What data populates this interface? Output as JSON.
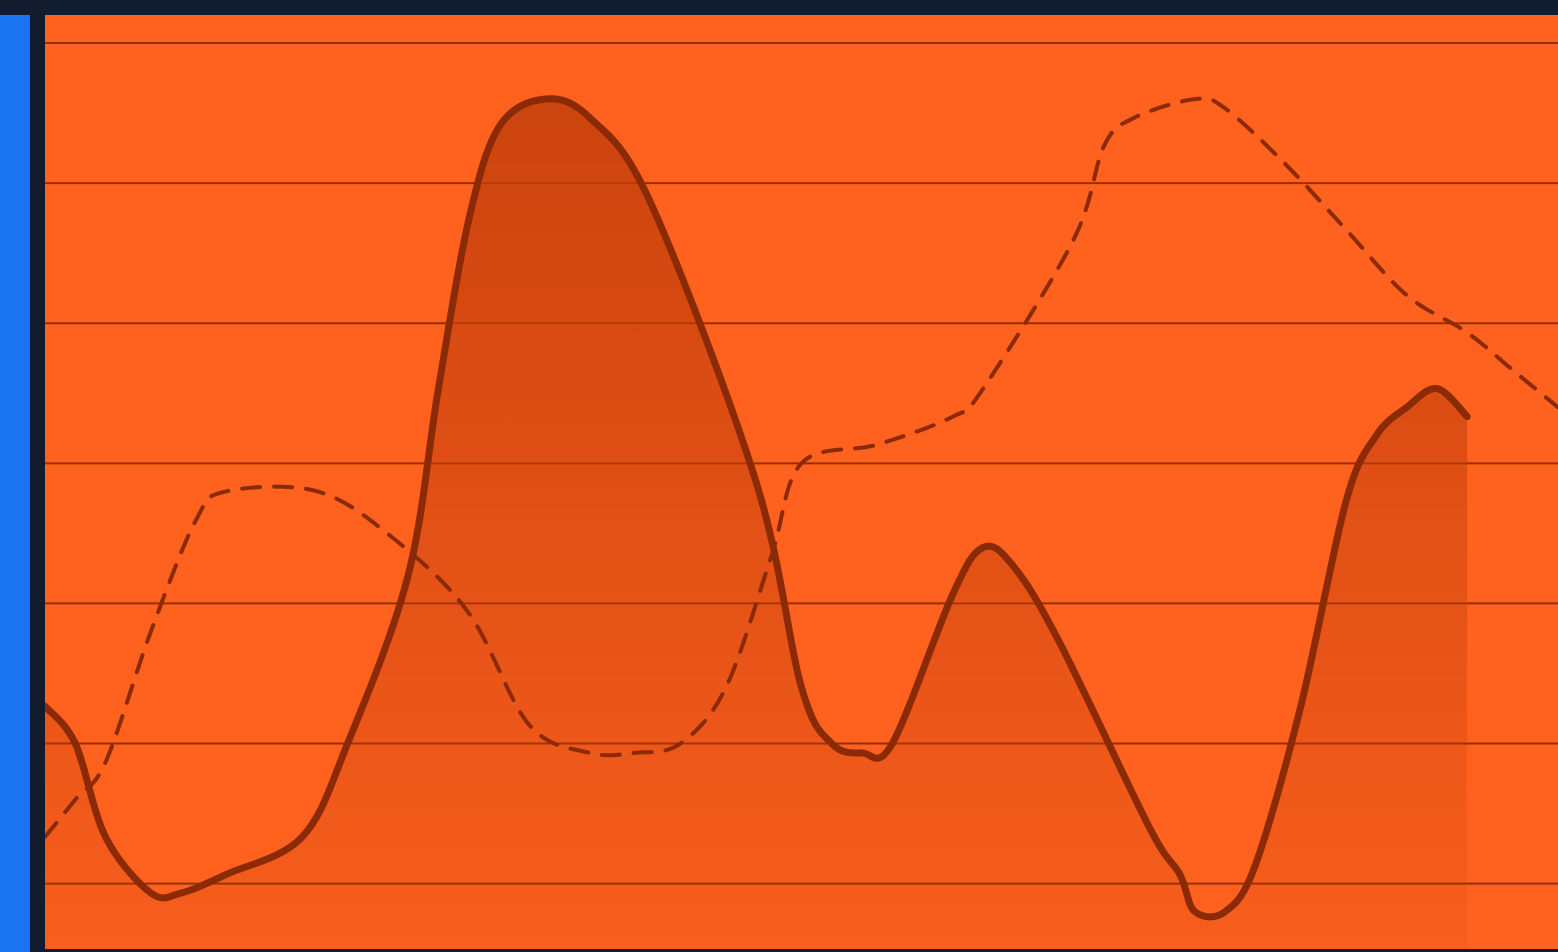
{
  "colors": {
    "frame": "#131c2e",
    "accent": "#1a73f0",
    "plot_background": "#ff621f",
    "line": "#8a2a06",
    "area_fill": "#c23e0b"
  },
  "chart_data": {
    "type": "line",
    "grid": "horizontal",
    "legend": "none",
    "x_range": [
      0,
      100
    ],
    "y_range": [
      0,
      100
    ],
    "gridlines_y": [
      7,
      22,
      37,
      52,
      67,
      82,
      97
    ],
    "series": [
      {
        "style": "solid",
        "filled": true,
        "points": [
          [
            0,
            26
          ],
          [
            2,
            22
          ],
          [
            4,
            12
          ],
          [
            7,
            6
          ],
          [
            9,
            6
          ],
          [
            12,
            8
          ],
          [
            17,
            12
          ],
          [
            20,
            22
          ],
          [
            24,
            40
          ],
          [
            26,
            60
          ],
          [
            28,
            78
          ],
          [
            30,
            88
          ],
          [
            33,
            91
          ],
          [
            36,
            89
          ],
          [
            40,
            80
          ],
          [
            47,
            50
          ],
          [
            50,
            28
          ],
          [
            52,
            22
          ],
          [
            54,
            21
          ],
          [
            56,
            22
          ],
          [
            60,
            38
          ],
          [
            62,
            43
          ],
          [
            64,
            41
          ],
          [
            67,
            33
          ],
          [
            73,
            13
          ],
          [
            75,
            8
          ],
          [
            76,
            4
          ],
          [
            78,
            4
          ],
          [
            80,
            9
          ],
          [
            83,
            26
          ],
          [
            86,
            48
          ],
          [
            88,
            55
          ],
          [
            90,
            58
          ],
          [
            92,
            60
          ],
          [
            94,
            57
          ]
        ]
      },
      {
        "style": "dashed",
        "filled": false,
        "points": [
          [
            0,
            12
          ],
          [
            2,
            16
          ],
          [
            4,
            20
          ],
          [
            7,
            34
          ],
          [
            10,
            46
          ],
          [
            12,
            49
          ],
          [
            18,
            49
          ],
          [
            23,
            44
          ],
          [
            28,
            36
          ],
          [
            32,
            24
          ],
          [
            36,
            21
          ],
          [
            39,
            21
          ],
          [
            42,
            22
          ],
          [
            45,
            28
          ],
          [
            48,
            42
          ],
          [
            50,
            52
          ],
          [
            55,
            54
          ],
          [
            60,
            57
          ],
          [
            62,
            60
          ],
          [
            68,
            76
          ],
          [
            70,
            86
          ],
          [
            72,
            89
          ],
          [
            76,
            91
          ],
          [
            78,
            90
          ],
          [
            82,
            84
          ],
          [
            86,
            77
          ],
          [
            90,
            70
          ],
          [
            94,
            66
          ],
          [
            97,
            62
          ],
          [
            100,
            58
          ]
        ]
      }
    ]
  }
}
